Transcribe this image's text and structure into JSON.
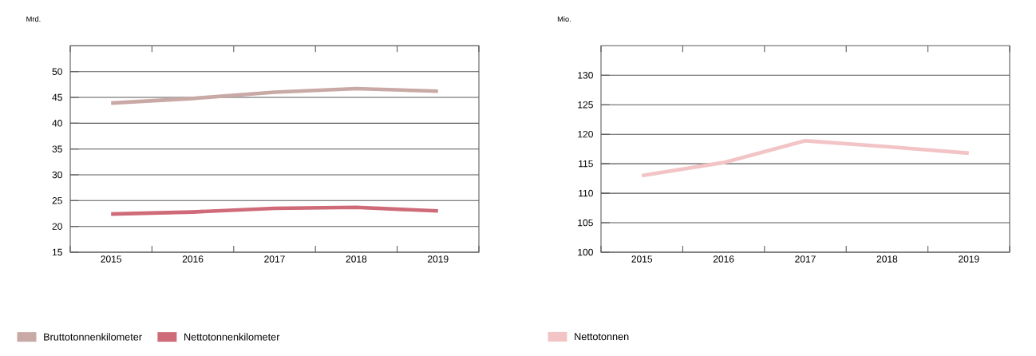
{
  "chart_data": [
    {
      "type": "line",
      "ylabel": "Mrd.",
      "categories": [
        "2015",
        "2016",
        "2017",
        "2018",
        "2019"
      ],
      "series": [
        {
          "name": "Bruttotonnenkilometer",
          "color": "#c9a9a6",
          "values": [
            43.9,
            44.8,
            46.0,
            46.7,
            46.2
          ]
        },
        {
          "name": "Nettotonnenkilometer",
          "color": "#cf6b78",
          "values": [
            22.4,
            22.8,
            23.5,
            23.7,
            23.0
          ]
        }
      ],
      "ylim": [
        15,
        55
      ],
      "yticks": [
        15,
        20,
        25,
        30,
        35,
        40,
        45,
        50
      ],
      "grid": "y",
      "legend": "bottom",
      "marker": "none",
      "line_style": "solid"
    },
    {
      "type": "line",
      "ylabel": "Mio.",
      "categories": [
        "2015",
        "2016",
        "2017",
        "2018",
        "2019"
      ],
      "series": [
        {
          "name": "Nettotonnen",
          "color": "#f2c4c6",
          "values": [
            113,
            115.2,
            118.9,
            117.9,
            116.8
          ]
        }
      ],
      "ylim": [
        100,
        135
      ],
      "yticks": [
        100,
        105,
        110,
        115,
        120,
        125,
        130
      ],
      "grid": "y",
      "legend": "bottom",
      "marker": "none",
      "line_style": "solid"
    }
  ]
}
